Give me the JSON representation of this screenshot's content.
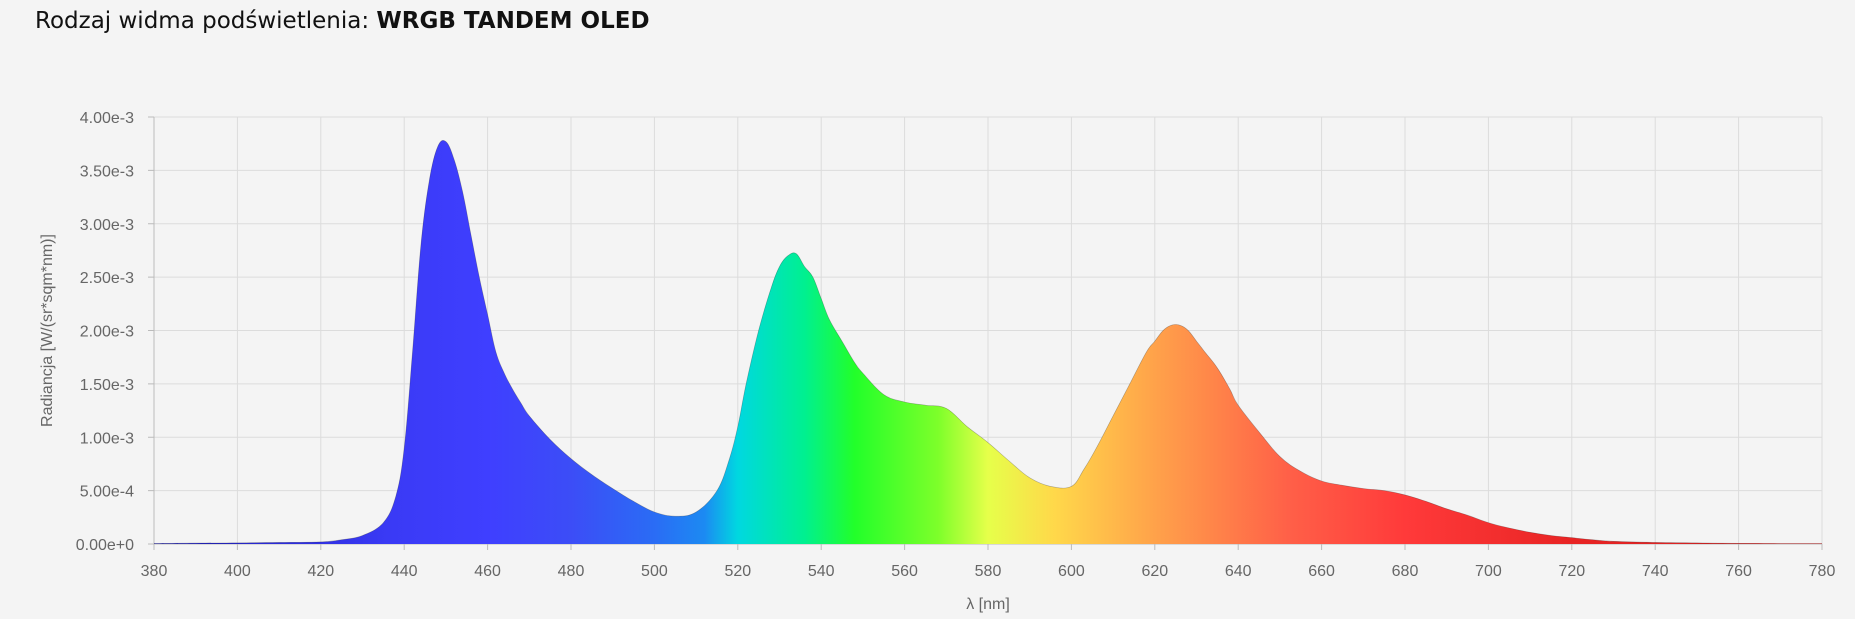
{
  "header": {
    "prefix": "Rodzaj widma podświetlenia:",
    "value": "WRGB TANDEM OLED"
  },
  "chart_data": {
    "type": "area",
    "xlabel": "λ [nm]",
    "ylabel": "Radiancja [W/(sr*sqm*nm)]",
    "xlim": [
      380,
      780
    ],
    "ylim": [
      0,
      0.004
    ],
    "x_ticks": [
      "380",
      "400",
      "420",
      "440",
      "460",
      "480",
      "500",
      "520",
      "540",
      "560",
      "580",
      "600",
      "620",
      "640",
      "660",
      "680",
      "700",
      "720",
      "740",
      "760",
      "780"
    ],
    "y_ticks": [
      "0.00e+0",
      "5.00e-4",
      "1.00e-3",
      "1.50e-3",
      "2.00e-3",
      "2.50e-3",
      "3.00e-3",
      "3.50e-3",
      "4.00e-3"
    ],
    "grid": true,
    "fill": "spectral-gradient",
    "x": [
      380,
      390,
      400,
      410,
      420,
      425,
      430,
      435,
      438,
      440,
      442,
      444,
      446,
      448,
      450,
      452,
      454,
      456,
      458,
      460,
      462,
      464,
      466,
      468,
      470,
      475,
      480,
      485,
      490,
      495,
      500,
      505,
      510,
      515,
      518,
      520,
      522,
      525,
      528,
      530,
      532,
      534,
      536,
      538,
      540,
      542,
      545,
      548,
      550,
      555,
      560,
      565,
      570,
      575,
      580,
      585,
      590,
      595,
      600,
      603,
      606,
      610,
      614,
      618,
      620,
      622,
      624,
      626,
      628,
      630,
      632,
      635,
      638,
      640,
      645,
      650,
      655,
      660,
      665,
      670,
      675,
      680,
      685,
      690,
      695,
      700,
      705,
      710,
      715,
      720,
      725,
      730,
      740,
      750,
      760,
      770,
      780
    ],
    "y": [
      5e-06,
      8e-06,
      1e-05,
      1.5e-05,
      2e-05,
      4e-05,
      8e-05,
      0.0002,
      0.00045,
      0.0009,
      0.0018,
      0.0028,
      0.0034,
      0.00372,
      0.00377,
      0.0036,
      0.0033,
      0.0029,
      0.0025,
      0.00215,
      0.0018,
      0.0016,
      0.00145,
      0.00132,
      0.0012,
      0.00098,
      0.0008,
      0.00065,
      0.00052,
      0.0004,
      0.0003,
      0.00026,
      0.0003,
      0.0005,
      0.0008,
      0.0011,
      0.0015,
      0.002,
      0.0024,
      0.0026,
      0.0027,
      0.00272,
      0.0026,
      0.0025,
      0.0023,
      0.0021,
      0.0019,
      0.0017,
      0.0016,
      0.0014,
      0.00133,
      0.0013,
      0.00127,
      0.0011,
      0.00095,
      0.00078,
      0.00062,
      0.00054,
      0.00054,
      0.0007,
      0.0009,
      0.0012,
      0.0015,
      0.0018,
      0.0019,
      0.002,
      0.00205,
      0.00205,
      0.002,
      0.0019,
      0.0018,
      0.00165,
      0.00145,
      0.0013,
      0.00105,
      0.00082,
      0.00068,
      0.00059,
      0.00055,
      0.00052,
      0.0005,
      0.00046,
      0.0004,
      0.00033,
      0.00027,
      0.0002,
      0.00015,
      0.00011,
      8e-05,
      6e-05,
      4e-05,
      2.5e-05,
      1.5e-05,
      1e-05,
      7e-06,
      5e-06,
      5e-06
    ]
  }
}
